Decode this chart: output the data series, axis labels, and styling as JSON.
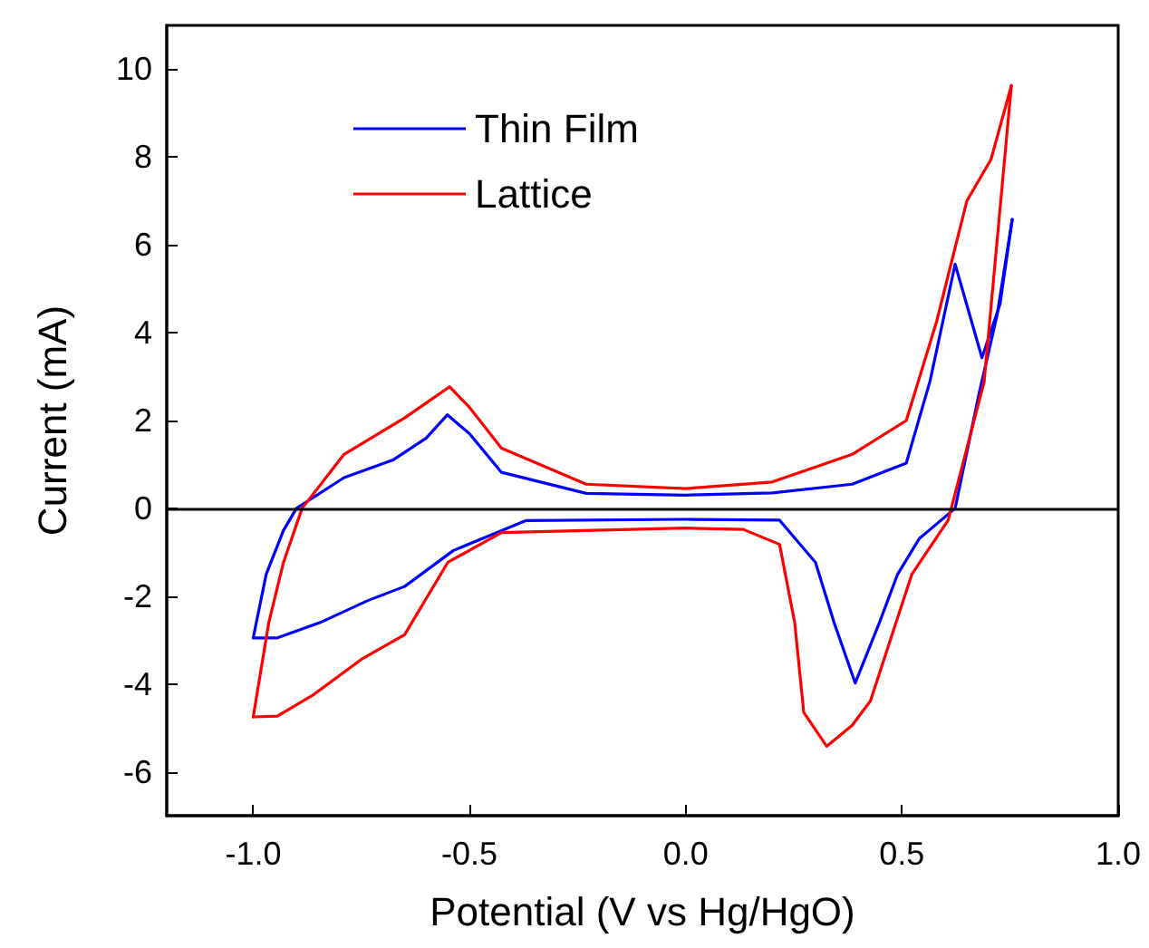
{
  "chart_data": {
    "type": "line",
    "xlabel": "Potential (V vs Hg/HgO)",
    "ylabel": "Current (mA)",
    "xlim": [
      -1.2,
      1.0
    ],
    "xticks": [
      {
        "value": -1.0,
        "label": "-1.0"
      },
      {
        "value": -0.5,
        "label": "-0.5"
      },
      {
        "value": 0,
        "label": "0.0"
      },
      {
        "value": 0.5,
        "label": "0.5"
      },
      {
        "value": 1.0,
        "label": "1.0"
      }
    ],
    "ylim": [
      -7,
      11
    ],
    "yticks": [
      -6,
      -4,
      -2,
      0,
      2,
      4,
      6,
      8,
      10
    ],
    "grid": false,
    "legend": "top left",
    "marker": "none",
    "line_style": "solid",
    "ref_lines": [
      {
        "axis": "y",
        "value": 0,
        "color": "#000000"
      }
    ],
    "series": [
      {
        "name": "Thin Film",
        "color": "#0000ff",
        "x": [
          -1.0,
          -0.97,
          -0.93,
          -0.9,
          -0.79,
          -0.677,
          -0.6,
          -0.551,
          -0.5,
          -0.426,
          -0.23,
          0.0,
          0.2,
          0.385,
          0.51,
          0.565,
          0.623,
          0.685,
          0.727,
          0.755
        ],
        "values": [
          -2.95,
          -1.5,
          -0.5,
          0.0,
          0.7,
          1.1,
          1.6,
          2.13,
          1.7,
          0.82,
          0.34,
          0.3,
          0.35,
          0.55,
          1.03,
          2.9,
          5.56,
          3.43,
          4.66,
          6.58
        ]
      },
      {
        "color": "#0000ff",
        "x": [
          -1.0,
          -0.944,
          -0.845,
          -0.735,
          -0.65,
          -0.537,
          -0.37,
          0.0,
          0.217,
          0.3,
          0.343,
          0.392,
          0.448,
          0.49,
          0.54,
          0.623,
          0.678,
          0.72,
          0.755
        ],
        "values": [
          -2.95,
          -2.95,
          -2.6,
          -2.1,
          -1.78,
          -0.96,
          -0.28,
          -0.25,
          -0.27,
          -1.23,
          -2.6,
          -3.98,
          -2.6,
          -1.5,
          -0.69,
          0.0,
          2.6,
          4.4,
          6.58
        ]
      },
      {
        "name": "Lattice",
        "color": "#ff0000",
        "x": [
          -1.0,
          -0.964,
          -0.93,
          -0.887,
          -0.79,
          -0.65,
          -0.6,
          -0.546,
          -0.5,
          -0.426,
          -0.23,
          0.0,
          0.2,
          0.385,
          0.51,
          0.58,
          0.65,
          0.706,
          0.753
        ],
        "values": [
          -4.75,
          -2.6,
          -1.23,
          0.0,
          1.23,
          2.06,
          2.4,
          2.77,
          2.3,
          1.37,
          0.55,
          0.45,
          0.6,
          1.23,
          2.0,
          4.25,
          7.0,
          7.95,
          9.63
        ]
      },
      {
        "color": "#ff0000",
        "x": [
          -1.0,
          -0.944,
          -0.86,
          -0.747,
          -0.65,
          -0.55,
          -0.426,
          0.0,
          0.133,
          0.217,
          0.252,
          0.273,
          0.326,
          0.385,
          0.427,
          0.523,
          0.607,
          0.69,
          0.753
        ],
        "values": [
          -4.75,
          -4.73,
          -4.24,
          -3.42,
          -2.88,
          -1.23,
          -0.55,
          -0.45,
          -0.48,
          -0.82,
          -2.6,
          -4.65,
          -5.42,
          -4.94,
          -4.39,
          -1.5,
          -0.27,
          2.88,
          9.63
        ]
      }
    ]
  }
}
